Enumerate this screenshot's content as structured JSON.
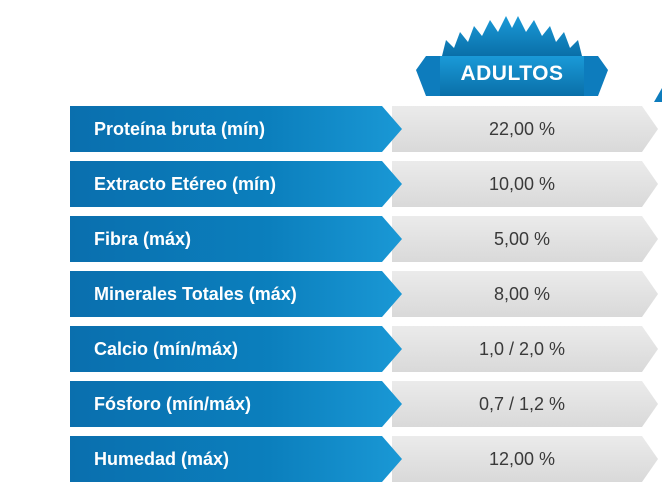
{
  "header": {
    "column_title": "ADULTOS"
  },
  "colors": {
    "label_blue": "#0b7fbd",
    "label_blue_light": "#1a98d5",
    "badge_blue": "#1086c4",
    "value_gray": "#e2e2e2",
    "value_text": "#3a3a3a"
  },
  "rows": [
    {
      "label": "Proteína bruta (mín)",
      "value": "22,00 %"
    },
    {
      "label": "Extracto Etéreo (mín)",
      "value": "10,00 %"
    },
    {
      "label": "Fibra (máx)",
      "value": "5,00 %"
    },
    {
      "label": "Minerales Totales (máx)",
      "value": "8,00 %"
    },
    {
      "label": "Calcio (mín/máx)",
      "value": "1,0 / 2,0 %"
    },
    {
      "label": "Fósforo (mín/máx)",
      "value": "0,7 / 1,2 %"
    },
    {
      "label": "Humedad (máx)",
      "value": "12,00 %"
    }
  ]
}
